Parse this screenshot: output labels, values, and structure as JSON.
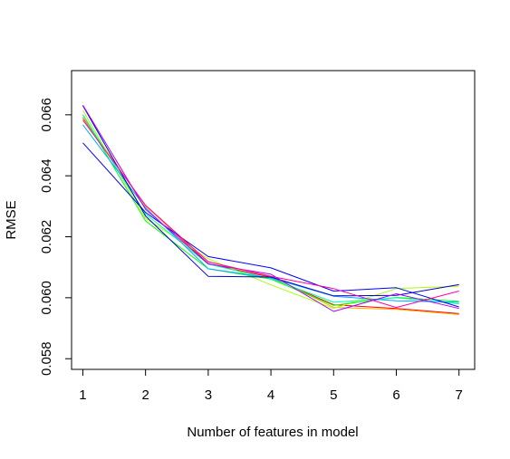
{
  "chart_data": {
    "type": "line",
    "title": "",
    "xlabel": "Number of features in model",
    "ylabel": "RMSE",
    "x": [
      1,
      2,
      3,
      4,
      5,
      6,
      7
    ],
    "xlim": [
      0.82,
      7.25
    ],
    "ylim": [
      0.05765,
      0.06745
    ],
    "x_ticks": [
      "1",
      "2",
      "3",
      "4",
      "5",
      "6",
      "7"
    ],
    "y_ticks": [
      "0.058",
      "0.060",
      "0.062",
      "0.064",
      "0.066"
    ],
    "y_tick_values": [
      0.058,
      0.06,
      0.062,
      0.064,
      0.066
    ],
    "grid": false,
    "legend": "none",
    "series": [
      {
        "color": "#ff0000",
        "values": [
          0.0659,
          0.06302,
          0.06112,
          0.06067,
          0.05977,
          0.05965,
          0.05948
        ]
      },
      {
        "color": "#ffaa00",
        "values": [
          0.06592,
          0.063,
          0.06118,
          0.06071,
          0.05968,
          0.05962,
          0.05945
        ]
      },
      {
        "color": "#aaff00",
        "values": [
          0.06615,
          0.0626,
          0.06128,
          0.06042,
          0.05965,
          0.0603,
          0.06038
        ]
      },
      {
        "color": "#00ff00",
        "values": [
          0.066,
          0.06252,
          0.06095,
          0.06061,
          0.05975,
          0.06001,
          0.05988
        ]
      },
      {
        "color": "#00ffaa",
        "values": [
          0.066,
          0.06275,
          0.0611,
          0.06063,
          0.05985,
          0.06,
          0.0598
        ]
      },
      {
        "color": "#00aaff",
        "values": [
          0.06567,
          0.06295,
          0.06095,
          0.06065,
          0.06005,
          0.0599,
          0.05985
        ]
      },
      {
        "color": "#0000ff",
        "values": [
          0.06508,
          0.0628,
          0.06135,
          0.06098,
          0.06022,
          0.06033,
          0.0597
        ]
      },
      {
        "color": "#0000cc",
        "values": [
          0.0663,
          0.06268,
          0.0607,
          0.06068,
          0.06006,
          0.06008,
          0.06043
        ]
      },
      {
        "color": "#aa00ff",
        "values": [
          0.06632,
          0.0629,
          0.06111,
          0.06077,
          0.05955,
          0.06013,
          0.05965
        ]
      },
      {
        "color": "#ff00aa",
        "values": [
          0.06583,
          0.06303,
          0.06118,
          0.0607,
          0.0603,
          0.05968,
          0.06022
        ]
      }
    ]
  }
}
